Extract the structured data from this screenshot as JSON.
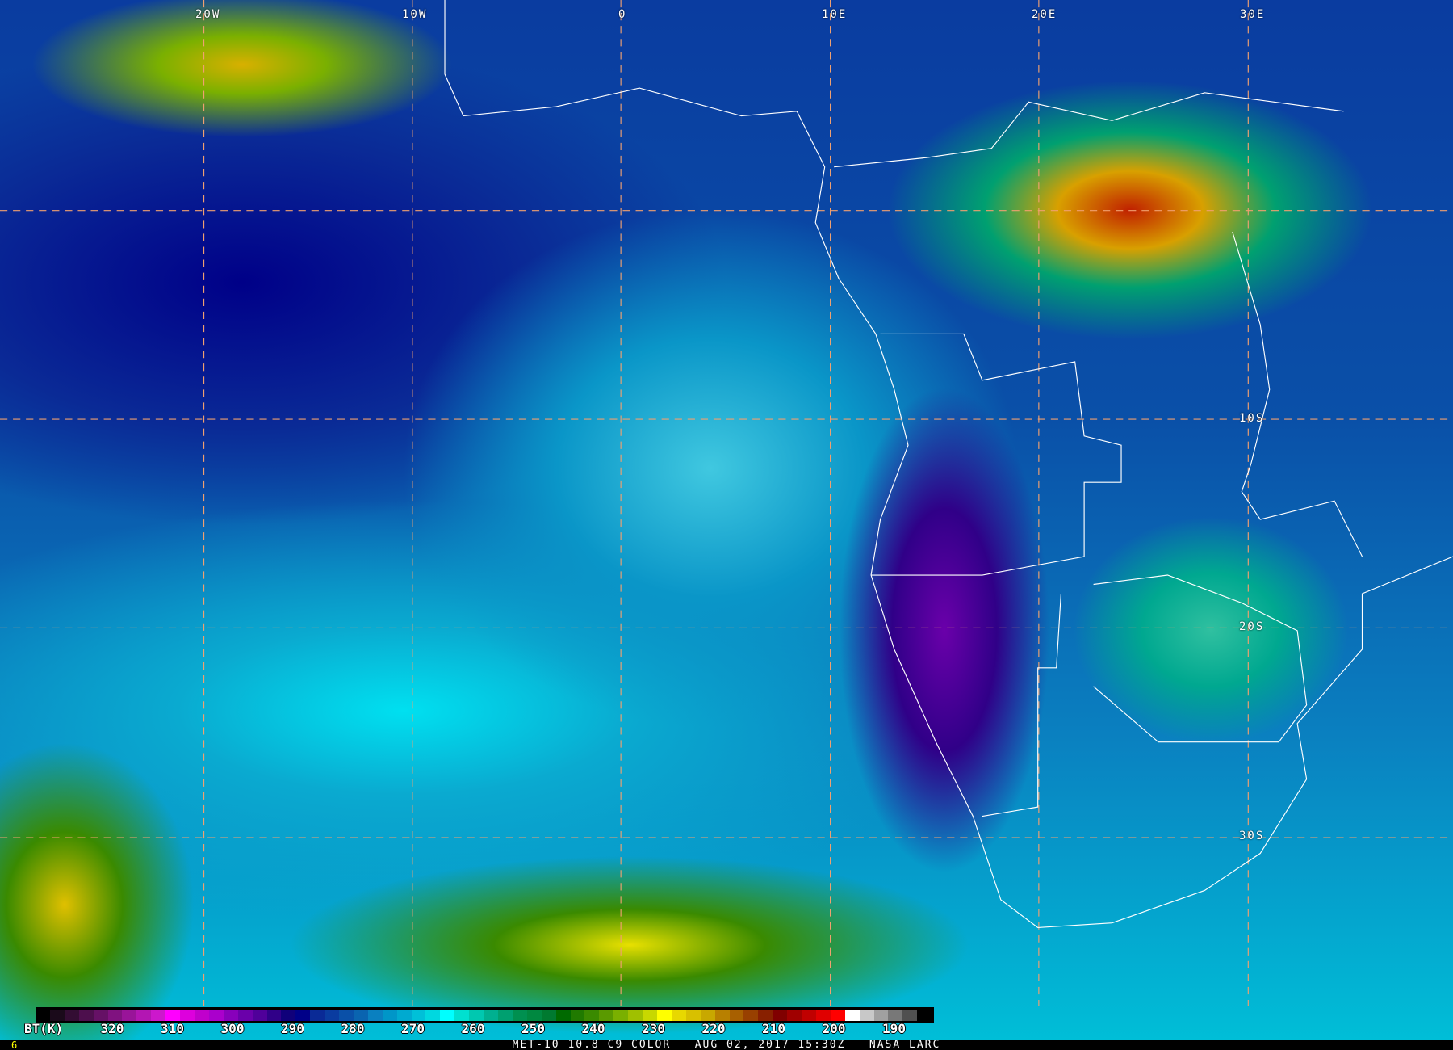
{
  "map": {
    "lon_labels": [
      "20W",
      "10W",
      "0",
      "10E",
      "20E",
      "30E"
    ],
    "lat_labels": [
      "10S",
      "20S",
      "30S"
    ],
    "grid_color": "#f0a070",
    "border_color": "#ffffff"
  },
  "legend": {
    "unit_label": "BT(K)",
    "ticks": [
      "320",
      "310",
      "300",
      "290",
      "280",
      "270",
      "260",
      "250",
      "240",
      "230",
      "220",
      "210",
      "200",
      "190"
    ],
    "colors": [
      "#000000",
      "#1a0a1a",
      "#330d33",
      "#4d0f4d",
      "#661166",
      "#801280",
      "#991499",
      "#b316b3",
      "#cc18cc",
      "#ff00ff",
      "#dd00dd",
      "#c000cc",
      "#aa00cc",
      "#8800bb",
      "#6a00aa",
      "#50009a",
      "#300088",
      "#10007a",
      "#000088",
      "#0a2a96",
      "#0a3ca0",
      "#0a50a8",
      "#0a64b0",
      "#0a80c0",
      "#0096c8",
      "#00aad0",
      "#00c0d8",
      "#00d8e0",
      "#00ffff",
      "#00e0d0",
      "#00c8b0",
      "#00b090",
      "#00a070",
      "#009050",
      "#008840",
      "#007a30",
      "#006a00",
      "#207a00",
      "#3a8a00",
      "#5a9a00",
      "#7ab000",
      "#a0c000",
      "#c8d800",
      "#ffff00",
      "#e8d800",
      "#d8c000",
      "#c8a800",
      "#b88000",
      "#a86000",
      "#984000",
      "#882000",
      "#800000",
      "#a00000",
      "#c00000",
      "#e00000",
      "#ff0000",
      "#ffffff",
      "#c8c8c8",
      "#a0a0a0",
      "#787878",
      "#505050",
      "#000000"
    ]
  },
  "footer": {
    "frame_number": "6",
    "product": "MET-10 10.8 C9 COLOR",
    "datetime": "AUG 02, 2017 15:30Z",
    "source": "NASA LARC"
  }
}
